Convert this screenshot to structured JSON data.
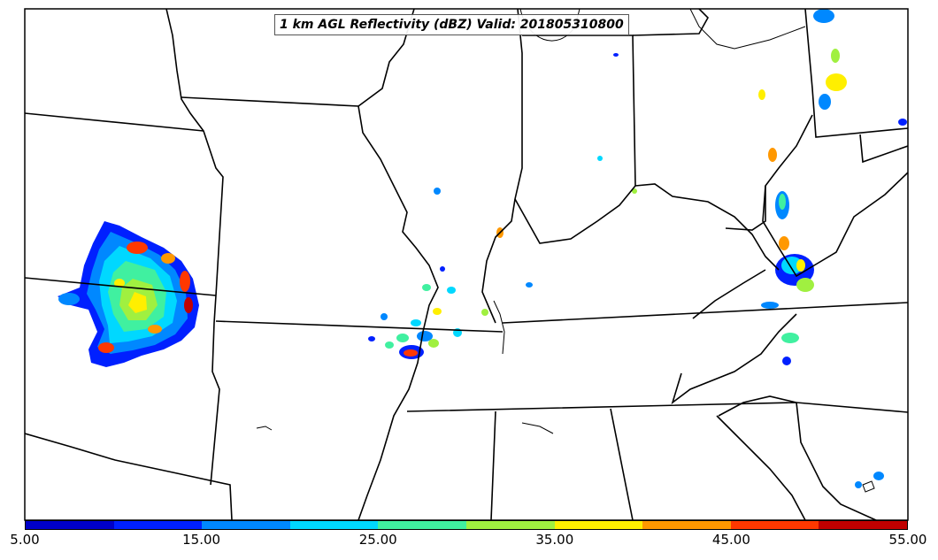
{
  "title": "1 km AGL Reflectivity (dBZ) Valid: 201805310800",
  "colorbar": {
    "colors": [
      "#0000c8",
      "#0020ff",
      "#0088ff",
      "#00d8ff",
      "#40f0a0",
      "#a0f040",
      "#ffef00",
      "#ff9800",
      "#ff3800",
      "#c00000"
    ],
    "ticks": [
      "5.00",
      "15.00",
      "25.00",
      "35.00",
      "45.00",
      "55.00"
    ]
  },
  "map": {
    "region": "Central / Eastern United States",
    "features": [
      "state boundaries",
      "coastline",
      "reflectivity echoes"
    ]
  }
}
